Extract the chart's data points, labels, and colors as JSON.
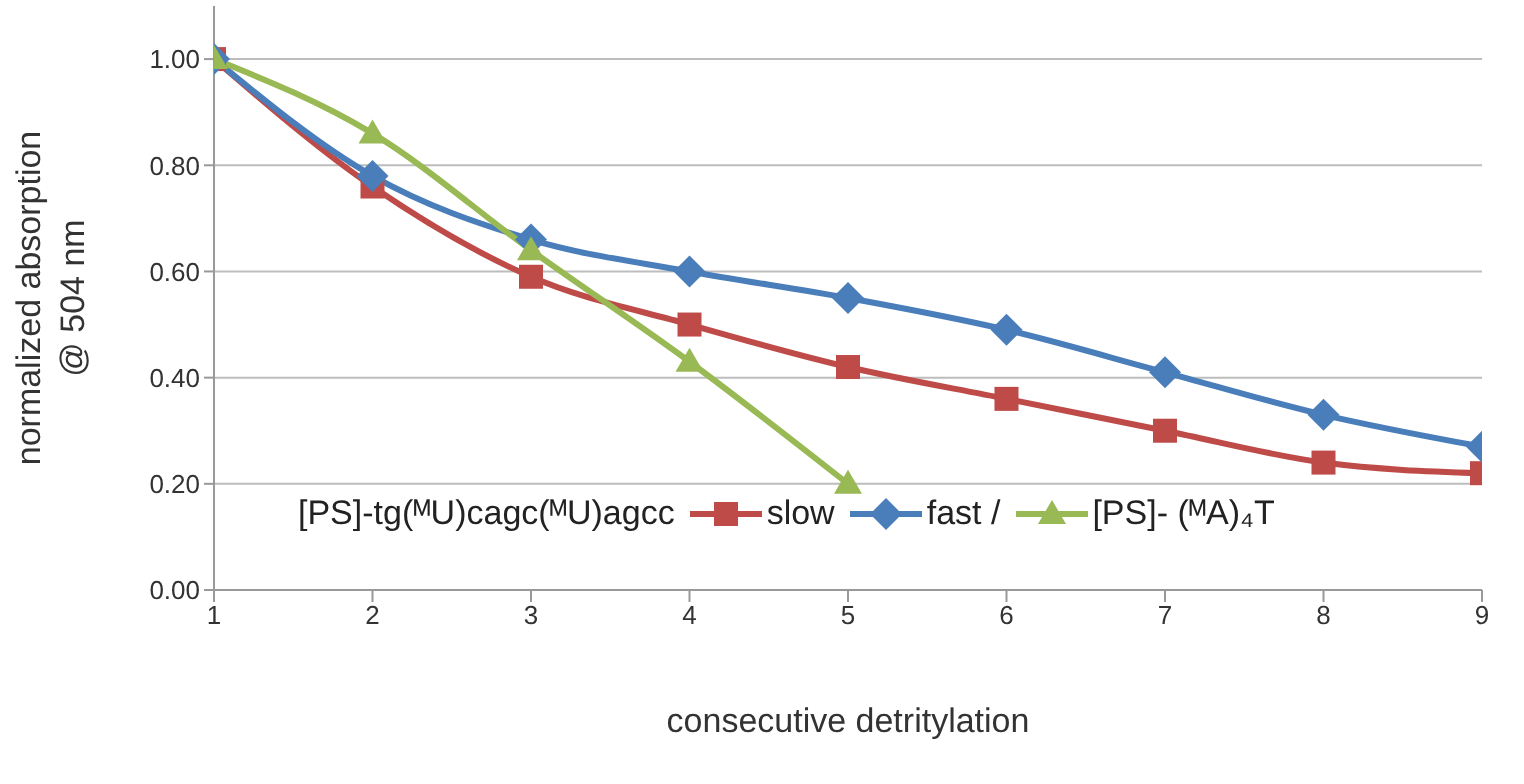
{
  "chart_data": {
    "type": "line",
    "xlabel": "consecutive detritylation",
    "ylabel": "normalized absorption\n@ 504 nm",
    "x": [
      1,
      2,
      3,
      4,
      5,
      6,
      7,
      8,
      9
    ],
    "series": [
      {
        "name": "slow",
        "color": "#be4b48",
        "marker": "square",
        "values": [
          1.0,
          0.76,
          0.59,
          0.5,
          0.42,
          0.36,
          0.3,
          0.24,
          0.22
        ]
      },
      {
        "name": "fast /",
        "color": "#4a7ebb",
        "marker": "diamond",
        "values": [
          1.0,
          0.78,
          0.66,
          0.6,
          0.55,
          0.49,
          0.41,
          0.33,
          0.27
        ]
      },
      {
        "name": "[PS]- (ᴹA)₄T",
        "color": "#98b954",
        "marker": "triangle",
        "values": [
          1.0,
          0.86,
          0.64,
          0.43,
          0.2,
          null,
          null,
          null,
          null
        ]
      }
    ],
    "annotations": [
      "[PS]-tg(ᴹU)cagc(ᴹU)agcc"
    ],
    "xlim": [
      1,
      9
    ],
    "xticks": [
      1,
      2,
      3,
      4,
      5,
      6,
      7,
      8,
      9
    ],
    "ylim": [
      0,
      1.1
    ],
    "yticks": [
      {
        "value": 0,
        "label": "0.00"
      },
      {
        "value": 0.2,
        "label": "0.20"
      },
      {
        "value": 0.4,
        "label": "0.40"
      },
      {
        "value": 0.6,
        "label": "0.60"
      },
      {
        "value": 0.8,
        "label": "0.80"
      },
      {
        "value": 1,
        "label": "1.00"
      }
    ],
    "grid": "y",
    "legend": "bottom"
  }
}
